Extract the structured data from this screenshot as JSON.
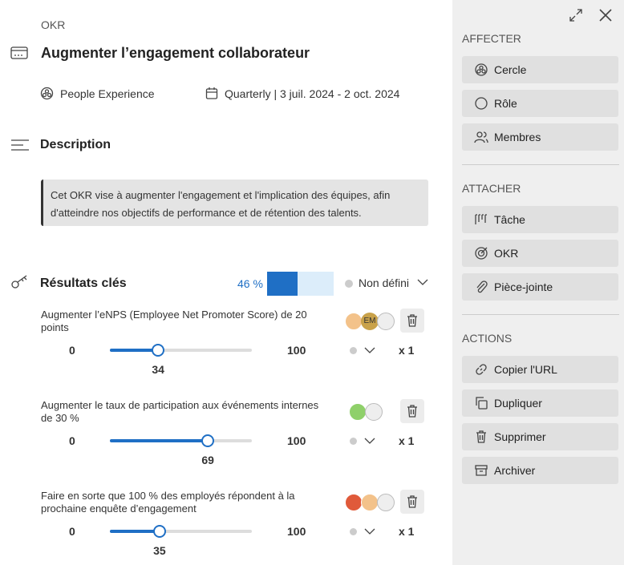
{
  "header": {
    "type_label": "OKR",
    "title": "Augmenter l’engagement collaborateur",
    "circle": "People Experience",
    "period": "Quarterly | 3 juil. 2024 - 2 oct. 2024"
  },
  "description": {
    "heading": "Description",
    "text": "Cet OKR vise à augmenter l'engagement et l'implication des équipes, afin d'atteindre nos objectifs de performance et de rétention des talents."
  },
  "key_results": {
    "heading": "Résultats clés",
    "progress": 46,
    "progress_label": "46 %",
    "status": "Non défini",
    "items": [
      {
        "title": "Augmenter l’eNPS (Employee Net Promoter Score) de 20 points",
        "initials": "EM",
        "min": 0,
        "max": 100,
        "value": 34,
        "weight": "x 1"
      },
      {
        "title": "Augmenter le taux de participation aux événements internes de 30 %",
        "min": 0,
        "max": 100,
        "value": 69,
        "weight": "x 1"
      },
      {
        "title": "Faire en sorte que 100 % des employés répondent à la prochaine enquête d’engagement",
        "min": 0,
        "max": 100,
        "value": 35,
        "weight": "x 1"
      }
    ]
  },
  "sidebar": {
    "sections": [
      {
        "heading": "AFFECTER",
        "buttons": [
          "Cercle",
          "Rôle",
          "Membres"
        ]
      },
      {
        "heading": "ATTACHER",
        "buttons": [
          "Tâche",
          "OKR",
          "Pièce-jointe"
        ]
      },
      {
        "heading": "ACTIONS",
        "buttons": [
          "Copier l'URL",
          "Dupliquer",
          "Supprimer",
          "Archiver"
        ]
      }
    ]
  }
}
